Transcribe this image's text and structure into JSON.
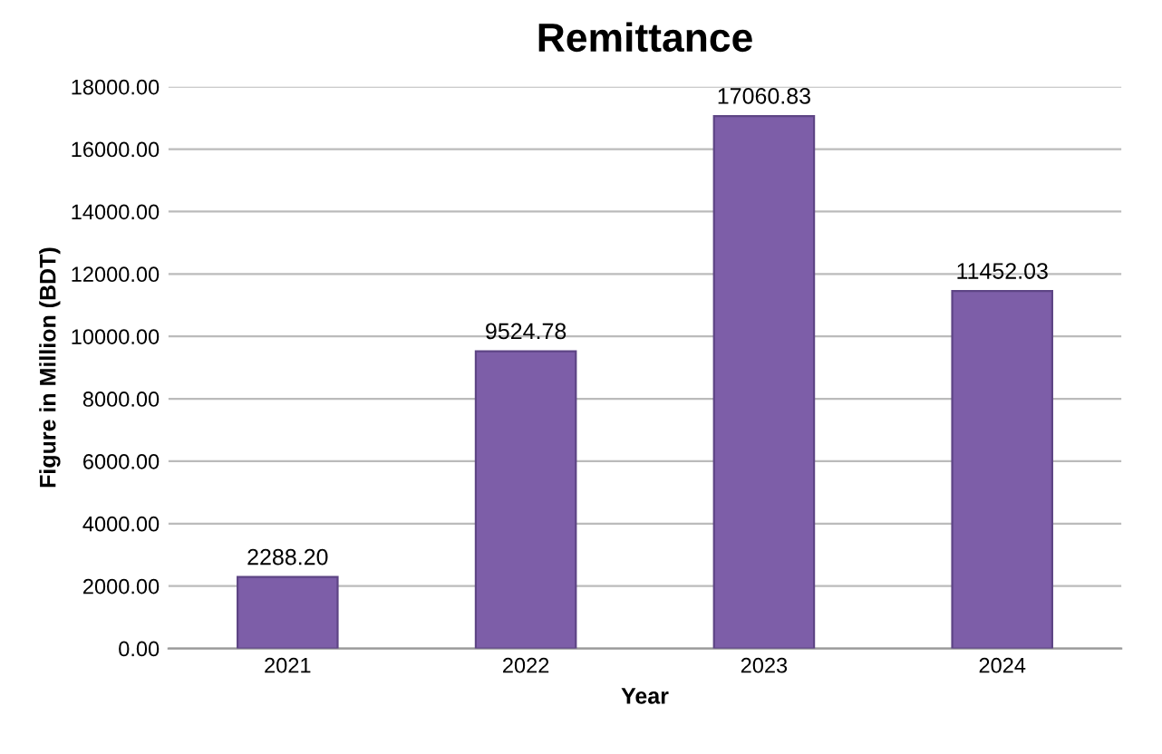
{
  "chart_data": {
    "type": "bar",
    "title": "Remittance",
    "xlabel": "Year",
    "ylabel": "Figure in Million (BDT)",
    "categories": [
      "2021",
      "2022",
      "2023",
      "2024"
    ],
    "values": [
      2288.2,
      9524.78,
      17060.83,
      11452.03
    ],
    "value_labels": [
      "2288.20",
      "9524.78",
      "17060.83",
      "11452.03"
    ],
    "color": "#7d5ea8",
    "ylim": [
      0,
      18000
    ],
    "yticks": [
      {
        "value": 0,
        "label": "0.00"
      },
      {
        "value": 2000,
        "label": "2000.00"
      },
      {
        "value": 4000,
        "label": "4000.00"
      },
      {
        "value": 6000,
        "label": "6000.00"
      },
      {
        "value": 8000,
        "label": "8000.00"
      },
      {
        "value": 10000,
        "label": "10000.00"
      },
      {
        "value": 12000,
        "label": "12000.00"
      },
      {
        "value": 14000,
        "label": "14000.00"
      },
      {
        "value": 16000,
        "label": "16000.00"
      },
      {
        "value": 18000,
        "label": "18000.00"
      }
    ],
    "grid": "y"
  }
}
